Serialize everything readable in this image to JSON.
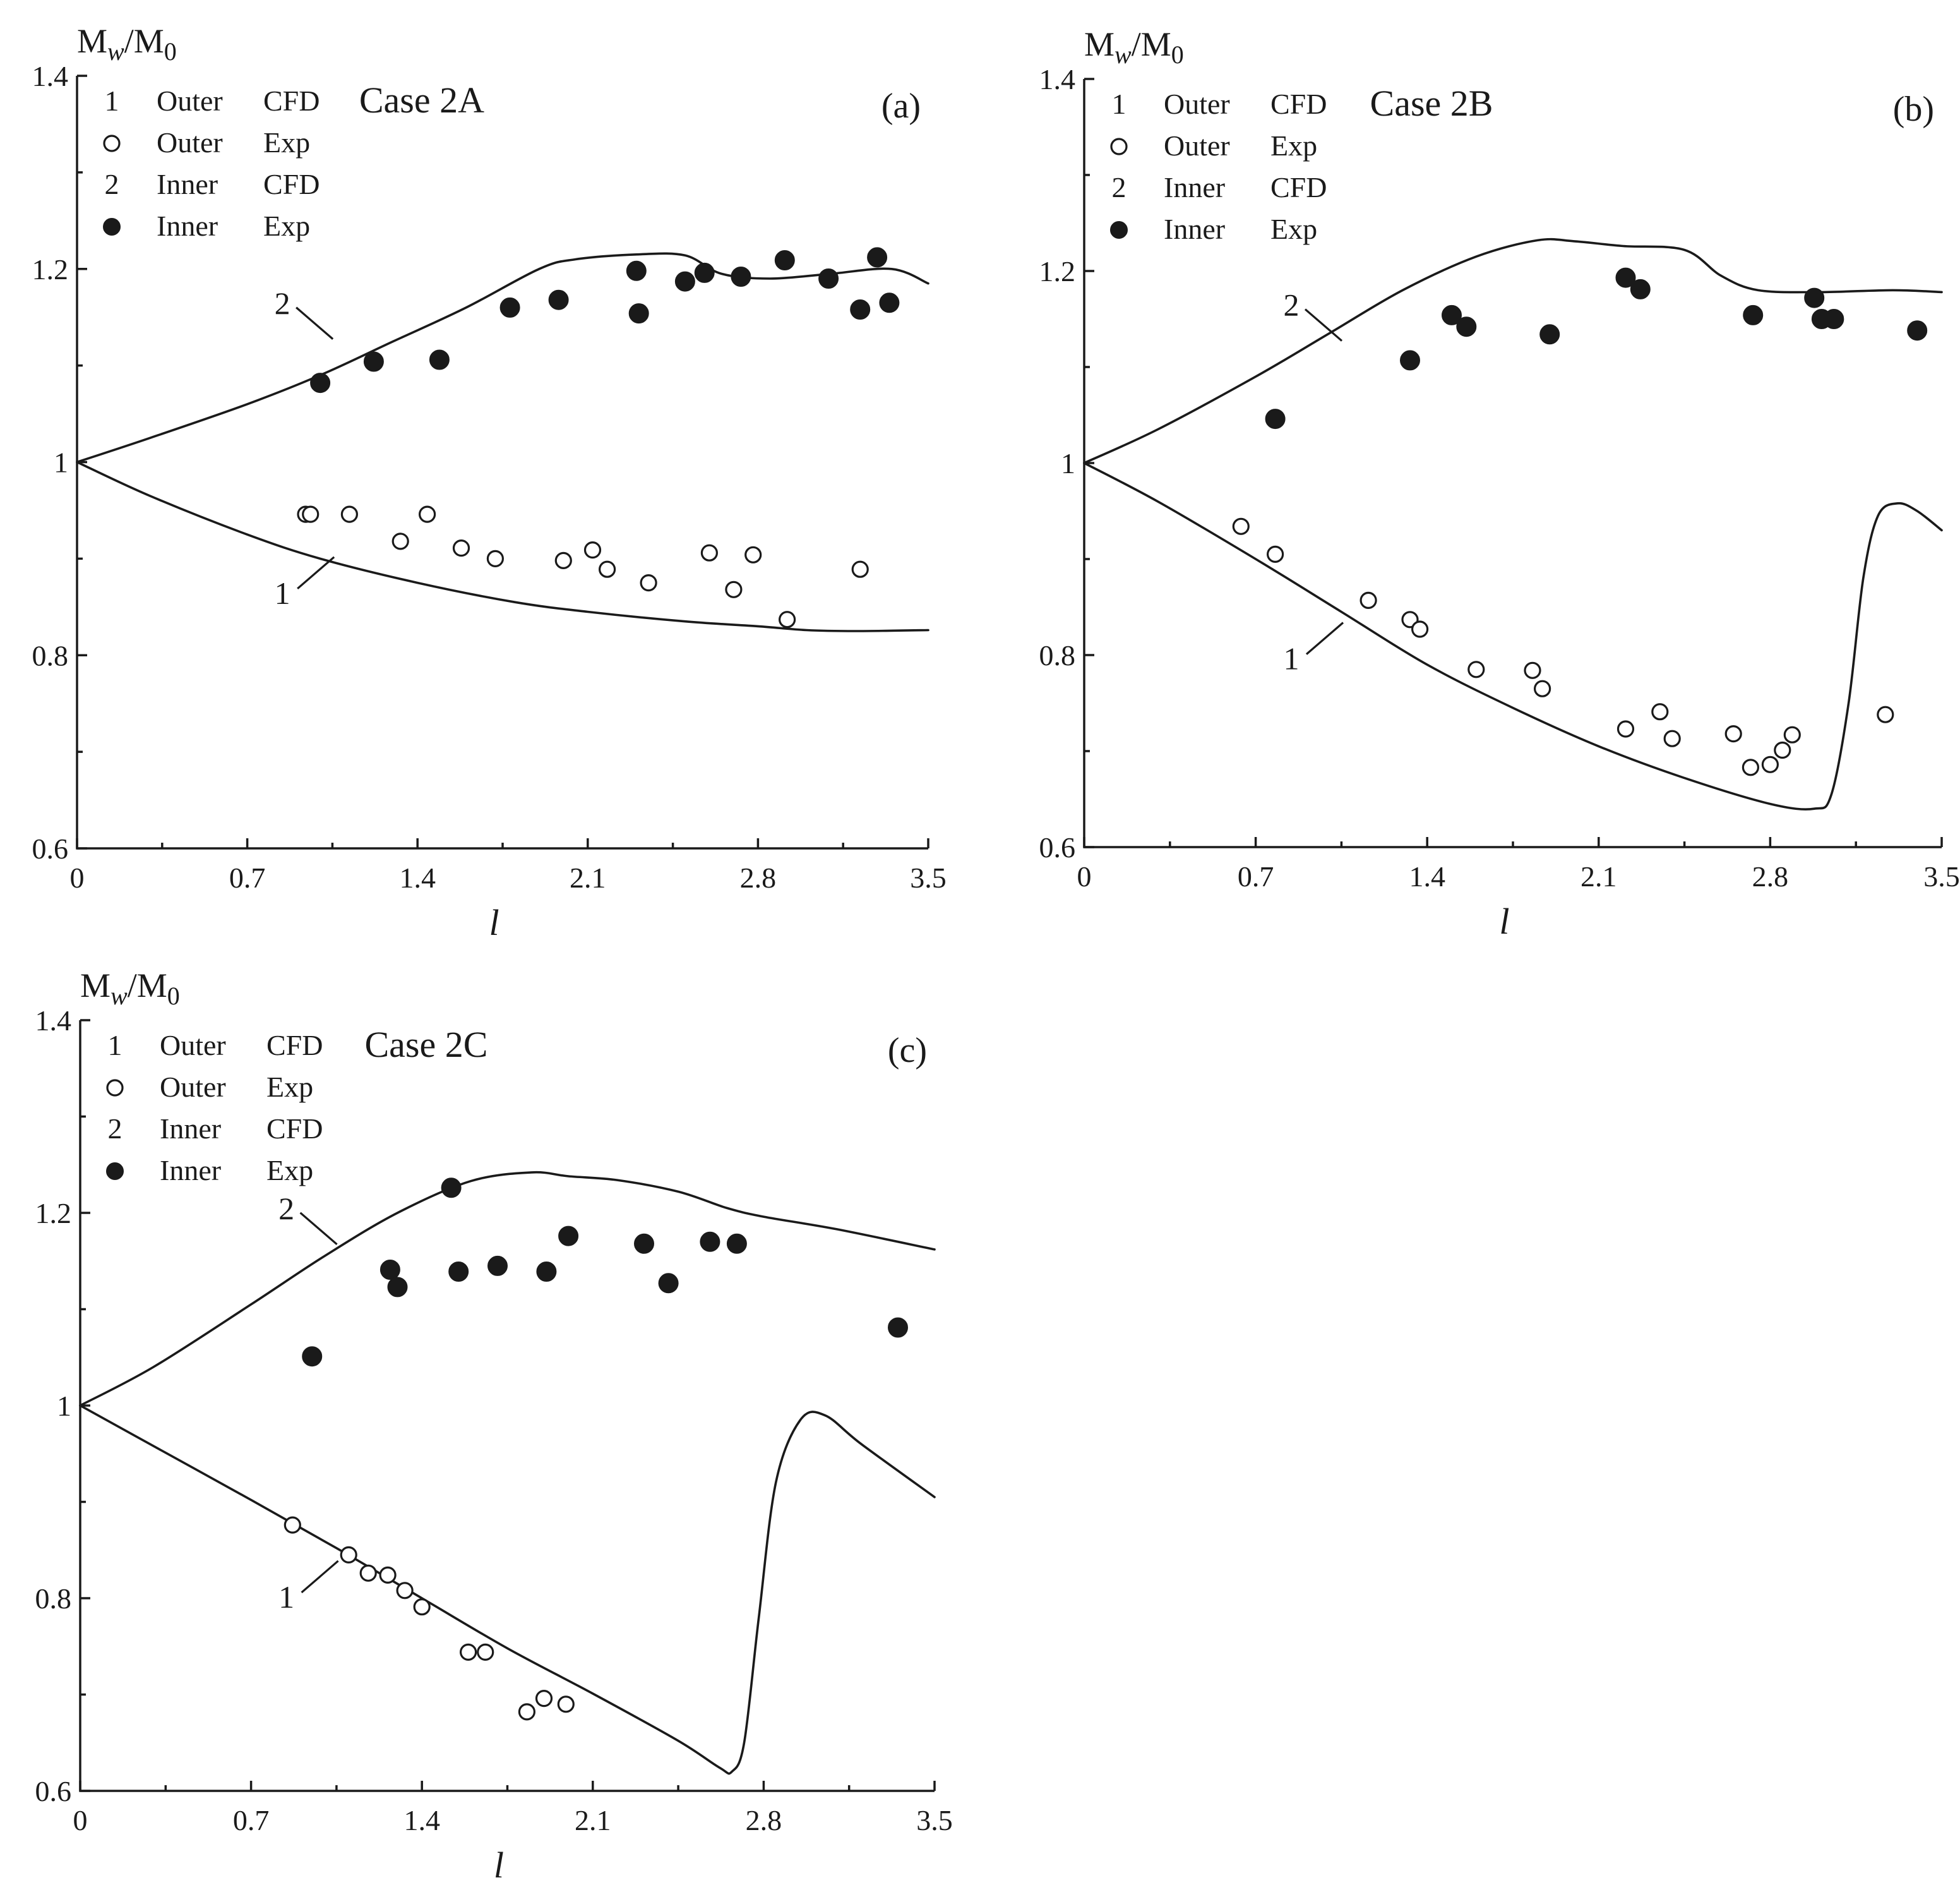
{
  "chart_data": [
    {
      "type": "line",
      "title": "Case 2A",
      "panel_label": "(a)",
      "xlabel": "l",
      "ylabel_main": "M",
      "ylabel_sub1": "w",
      "ylabel_mid": "/M",
      "ylabel_sub2": "0",
      "xlim": [
        0,
        3.5
      ],
      "ylim": [
        0.6,
        1.4
      ],
      "x_ticks": [
        "0",
        "0.7",
        "1.4",
        "2.1",
        "2.8",
        "3.5"
      ],
      "y_ticks": [
        "0.6",
        "0.8",
        "1",
        "1.2",
        "1.4"
      ],
      "legend": [
        {
          "marker": "1",
          "text1": "Outer",
          "text2": "CFD"
        },
        {
          "marker": "open-circle",
          "text1": "Outer",
          "text2": "Exp"
        },
        {
          "marker": "2",
          "text1": "Inner",
          "text2": "CFD"
        },
        {
          "marker": "filled-circle",
          "text1": "Inner",
          "text2": "Exp"
        }
      ],
      "curve_labels": {
        "outer": "1",
        "inner": "2"
      },
      "series": [
        {
          "name": "Outer CFD",
          "label": "1",
          "x": [
            0,
            0.3,
            0.7,
            1.0,
            1.4,
            1.8,
            2.1,
            2.5,
            2.8,
            3.0,
            3.2,
            3.5
          ],
          "y": [
            1.0,
            0.965,
            0.925,
            0.9,
            0.875,
            0.855,
            0.845,
            0.835,
            0.83,
            0.826,
            0.825,
            0.826
          ]
        },
        {
          "name": "Inner CFD",
          "label": "2",
          "x": [
            0,
            0.3,
            0.7,
            1.0,
            1.3,
            1.6,
            1.9,
            2.05,
            2.3,
            2.5,
            2.65,
            2.85,
            3.1,
            3.35,
            3.5
          ],
          "y": [
            1.0,
            1.025,
            1.06,
            1.09,
            1.125,
            1.16,
            1.2,
            1.21,
            1.215,
            1.214,
            1.195,
            1.19,
            1.195,
            1.2,
            1.185
          ]
        },
        {
          "name": "Outer Exp",
          "x": [
            0.94,
            0.96,
            1.12,
            1.33,
            1.44,
            1.58,
            1.72,
            2.0,
            2.12,
            2.18,
            2.35,
            2.6,
            2.7,
            2.78,
            2.92,
            3.22
          ],
          "y": [
            0.946,
            0.946,
            0.946,
            0.918,
            0.946,
            0.911,
            0.9,
            0.898,
            0.909,
            0.889,
            0.875,
            0.906,
            0.868,
            0.904,
            0.837,
            0.889
          ]
        },
        {
          "name": "Inner Exp",
          "x": [
            1.0,
            1.22,
            1.49,
            1.78,
            1.98,
            2.3,
            2.31,
            2.5,
            2.58,
            2.73,
            2.91,
            3.09,
            3.22,
            3.29,
            3.34
          ],
          "y": [
            1.082,
            1.104,
            1.106,
            1.16,
            1.168,
            1.198,
            1.154,
            1.187,
            1.196,
            1.192,
            1.209,
            1.19,
            1.158,
            1.212,
            1.165
          ]
        }
      ]
    },
    {
      "type": "line",
      "title": "Case 2B",
      "panel_label": "(b)",
      "xlabel": "l",
      "ylabel_main": "M",
      "ylabel_sub1": "w",
      "ylabel_mid": "/M",
      "ylabel_sub2": "0",
      "xlim": [
        0,
        3.5
      ],
      "ylim": [
        0.6,
        1.4
      ],
      "x_ticks": [
        "0",
        "0.7",
        "1.4",
        "2.1",
        "2.8",
        "3.5"
      ],
      "y_ticks": [
        "0.6",
        "0.8",
        "1",
        "1.2",
        "1.4"
      ],
      "legend": [
        {
          "marker": "1",
          "text1": "Outer",
          "text2": "CFD"
        },
        {
          "marker": "open-circle",
          "text1": "Outer",
          "text2": "Exp"
        },
        {
          "marker": "2",
          "text1": "Inner",
          "text2": "CFD"
        },
        {
          "marker": "filled-circle",
          "text1": "Inner",
          "text2": "Exp"
        }
      ],
      "curve_labels": {
        "outer": "1",
        "inner": "2"
      },
      "series": [
        {
          "name": "Outer CFD",
          "label": "1",
          "x": [
            0,
            0.3,
            0.7,
            1.05,
            1.4,
            1.75,
            2.1,
            2.45,
            2.8,
            2.98,
            3.05,
            3.12,
            3.18,
            3.24,
            3.32,
            3.4,
            3.5
          ],
          "y": [
            1.0,
            0.96,
            0.9,
            0.845,
            0.79,
            0.745,
            0.705,
            0.672,
            0.645,
            0.64,
            0.655,
            0.75,
            0.88,
            0.945,
            0.958,
            0.95,
            0.93
          ]
        },
        {
          "name": "Inner CFD",
          "label": "2",
          "x": [
            0,
            0.3,
            0.7,
            1.0,
            1.3,
            1.6,
            1.85,
            2.0,
            2.2,
            2.45,
            2.6,
            2.75,
            3.0,
            3.3,
            3.5
          ],
          "y": [
            1.0,
            1.035,
            1.09,
            1.135,
            1.18,
            1.215,
            1.232,
            1.231,
            1.226,
            1.222,
            1.195,
            1.18,
            1.178,
            1.18,
            1.178
          ]
        },
        {
          "name": "Outer Exp",
          "x": [
            0.64,
            0.78,
            1.16,
            1.33,
            1.37,
            1.6,
            1.83,
            1.87,
            2.21,
            2.35,
            2.4,
            2.65,
            2.72,
            2.8,
            2.85,
            2.89,
            3.27
          ],
          "y": [
            0.934,
            0.905,
            0.857,
            0.837,
            0.827,
            0.785,
            0.784,
            0.765,
            0.723,
            0.741,
            0.713,
            0.718,
            0.683,
            0.686,
            0.701,
            0.717,
            0.738
          ]
        },
        {
          "name": "Inner Exp",
          "x": [
            0.78,
            1.33,
            1.5,
            1.56,
            1.9,
            2.21,
            2.27,
            2.73,
            2.98,
            3.01,
            3.06,
            3.4
          ],
          "y": [
            1.046,
            1.107,
            1.154,
            1.142,
            1.134,
            1.193,
            1.181,
            1.154,
            1.172,
            1.15,
            1.15,
            1.138
          ]
        }
      ]
    },
    {
      "type": "line",
      "title": "Case 2C",
      "panel_label": "(c)",
      "xlabel": "l",
      "ylabel_main": "M",
      "ylabel_sub1": "w",
      "ylabel_mid": "/M",
      "ylabel_sub2": "0",
      "xlim": [
        0,
        3.5
      ],
      "ylim": [
        0.6,
        1.4
      ],
      "x_ticks": [
        "0",
        "0.7",
        "1.4",
        "2.1",
        "2.8",
        "3.5"
      ],
      "y_ticks": [
        "0.6",
        "0.8",
        "1",
        "1.2",
        "1.4"
      ],
      "legend": [
        {
          "marker": "1",
          "text1": "Outer",
          "text2": "CFD"
        },
        {
          "marker": "open-circle",
          "text1": "Outer",
          "text2": "Exp"
        },
        {
          "marker": "2",
          "text1": "Inner",
          "text2": "CFD"
        },
        {
          "marker": "filled-circle",
          "text1": "Inner",
          "text2": "Exp"
        }
      ],
      "curve_labels": {
        "outer": "1",
        "inner": "2"
      },
      "series": [
        {
          "name": "Outer CFD",
          "label": "1",
          "x": [
            0,
            0.35,
            0.7,
            1.05,
            1.4,
            1.75,
            2.1,
            2.45,
            2.62,
            2.67,
            2.72,
            2.78,
            2.85,
            2.95,
            3.05,
            3.2,
            3.5
          ],
          "y": [
            1.0,
            0.951,
            0.902,
            0.852,
            0.8,
            0.748,
            0.701,
            0.652,
            0.624,
            0.62,
            0.65,
            0.78,
            0.92,
            0.985,
            0.99,
            0.96,
            0.905
          ]
        },
        {
          "name": "Inner CFD",
          "label": "2",
          "x": [
            0,
            0.3,
            0.7,
            1.0,
            1.3,
            1.6,
            1.85,
            2.0,
            2.2,
            2.45,
            2.65,
            2.8,
            3.1,
            3.5
          ],
          "y": [
            1.0,
            1.04,
            1.105,
            1.155,
            1.2,
            1.233,
            1.242,
            1.238,
            1.234,
            1.222,
            1.205,
            1.196,
            1.183,
            1.162
          ]
        },
        {
          "name": "Outer Exp",
          "x": [
            0.87,
            1.1,
            1.18,
            1.26,
            1.33,
            1.4,
            1.59,
            1.66,
            1.83,
            1.9,
            1.99
          ],
          "y": [
            0.876,
            0.845,
            0.826,
            0.824,
            0.808,
            0.791,
            0.744,
            0.744,
            0.682,
            0.696,
            0.69
          ]
        },
        {
          "name": "Inner Exp",
          "x": [
            0.95,
            1.27,
            1.3,
            1.52,
            1.55,
            1.71,
            1.91,
            2.0,
            2.31,
            2.41,
            2.58,
            2.69,
            3.35
          ],
          "y": [
            1.051,
            1.141,
            1.123,
            1.226,
            1.139,
            1.145,
            1.139,
            1.176,
            1.168,
            1.127,
            1.17,
            1.168,
            1.081
          ]
        }
      ]
    }
  ]
}
